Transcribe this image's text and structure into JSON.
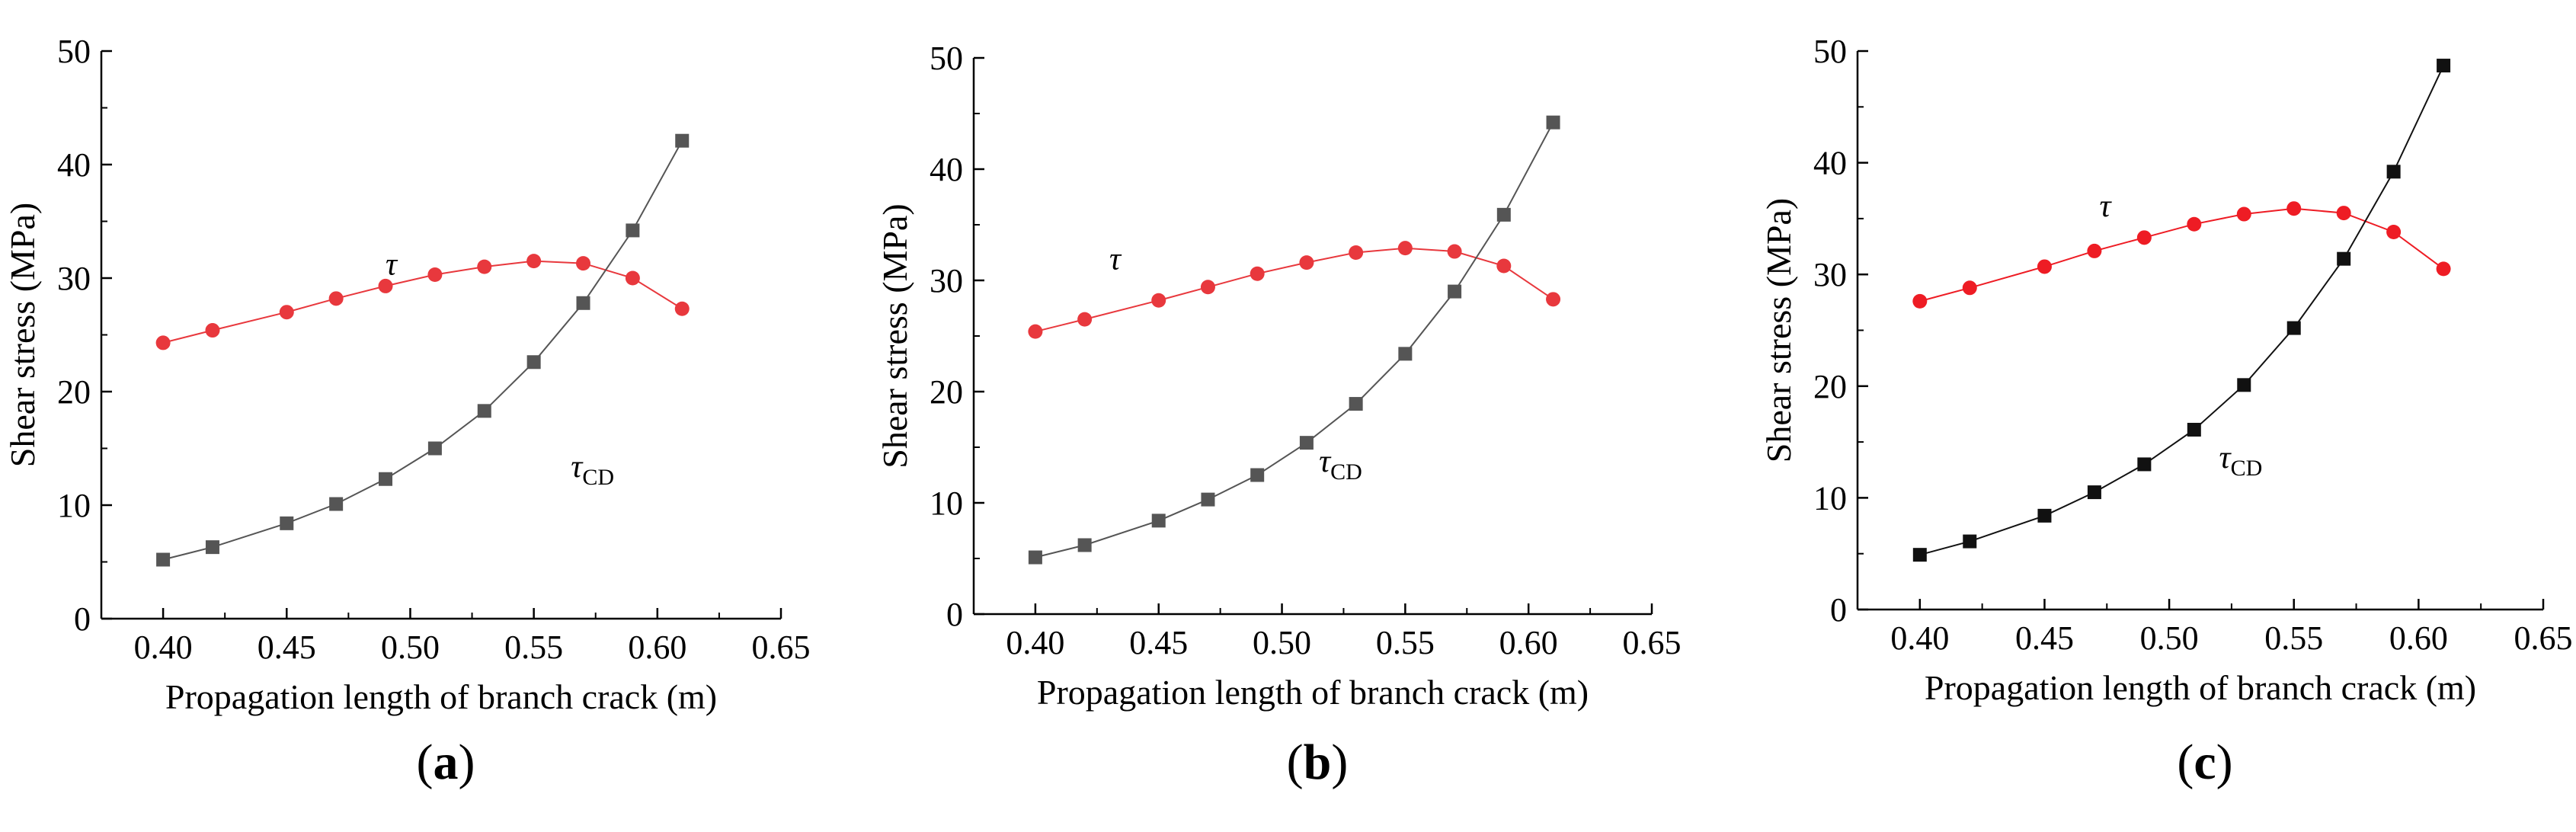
{
  "chart_data": [
    {
      "type": "line",
      "panel_label": "a",
      "xlabel": "Propagation length of branch crack (m)",
      "ylabel": "Shear stress (MPa)",
      "xlim": [
        0.375,
        0.65
      ],
      "ylim": [
        0,
        50
      ],
      "xticks": [
        "0.40",
        "0.45",
        "0.50",
        "0.55",
        "0.60",
        "0.65"
      ],
      "yticks": [
        "0",
        "10",
        "20",
        "30",
        "40",
        "50"
      ],
      "x": [
        0.4,
        0.42,
        0.45,
        0.47,
        0.49,
        0.51,
        0.53,
        0.55,
        0.57,
        0.59,
        0.61
      ],
      "series": [
        {
          "name": "τ",
          "label": "τ",
          "subscript": "",
          "marker": "circle",
          "color": "#e8383d",
          "values": [
            24.3,
            25.4,
            27.0,
            28.2,
            29.3,
            30.3,
            31.0,
            31.5,
            31.3,
            30.0,
            27.3
          ],
          "label_at": [
            0.49,
            30.3
          ]
        },
        {
          "name": "τCD",
          "label": "τ",
          "subscript": "CD",
          "marker": "square",
          "color": "#555555",
          "values": [
            5.2,
            6.3,
            8.4,
            10.1,
            12.3,
            15.0,
            18.3,
            22.6,
            27.8,
            34.2,
            42.1
          ],
          "label_at": [
            0.565,
            12.5
          ]
        }
      ]
    },
    {
      "type": "line",
      "panel_label": "b",
      "xlabel": "Propagation length of branch crack (m)",
      "ylabel": "Shear stress (MPa)",
      "xlim": [
        0.375,
        0.65
      ],
      "ylim": [
        0,
        50
      ],
      "xticks": [
        "0.40",
        "0.45",
        "0.50",
        "0.55",
        "0.60",
        "0.65"
      ],
      "yticks": [
        "0",
        "10",
        "20",
        "30",
        "40",
        "50"
      ],
      "x": [
        0.4,
        0.42,
        0.45,
        0.47,
        0.49,
        0.51,
        0.53,
        0.55,
        0.57,
        0.59,
        0.61
      ],
      "series": [
        {
          "name": "τ",
          "label": "τ",
          "subscript": "",
          "marker": "circle",
          "color": "#e8383d",
          "values": [
            25.4,
            26.5,
            28.2,
            29.4,
            30.6,
            31.6,
            32.5,
            32.9,
            32.6,
            31.3,
            28.3
          ],
          "label_at": [
            0.43,
            31.0
          ]
        },
        {
          "name": "τCD",
          "label": "τ",
          "subscript": "CD",
          "marker": "square",
          "color": "#555555",
          "values": [
            5.1,
            6.2,
            8.4,
            10.3,
            12.5,
            15.4,
            18.9,
            23.4,
            29.0,
            35.9,
            44.2
          ],
          "label_at": [
            0.515,
            12.8
          ]
        }
      ]
    },
    {
      "type": "line",
      "panel_label": "c",
      "xlabel": "Propagation length of branch crack (m)",
      "ylabel": "Shear stress (MPa)",
      "xlim": [
        0.375,
        0.65
      ],
      "ylim": [
        0,
        50
      ],
      "xticks": [
        "0.40",
        "0.45",
        "0.50",
        "0.55",
        "0.60",
        "0.65"
      ],
      "yticks": [
        "0",
        "10",
        "20",
        "30",
        "40",
        "50"
      ],
      "x": [
        0.4,
        0.42,
        0.45,
        0.47,
        0.49,
        0.51,
        0.53,
        0.55,
        0.57,
        0.59,
        0.61
      ],
      "series": [
        {
          "name": "τ",
          "label": "τ",
          "subscript": "",
          "marker": "circle",
          "color": "#ee1c24",
          "values": [
            27.6,
            28.8,
            30.7,
            32.1,
            33.3,
            34.5,
            35.4,
            35.9,
            35.5,
            33.8,
            30.5
          ],
          "label_at": [
            0.472,
            35.2
          ]
        },
        {
          "name": "τCD",
          "label": "τ",
          "subscript": "CD",
          "marker": "square",
          "color": "#111111",
          "values": [
            4.9,
            6.1,
            8.4,
            10.5,
            13.0,
            16.1,
            20.1,
            25.2,
            31.4,
            39.2,
            48.7
          ],
          "label_at": [
            0.52,
            12.7
          ]
        }
      ]
    }
  ]
}
